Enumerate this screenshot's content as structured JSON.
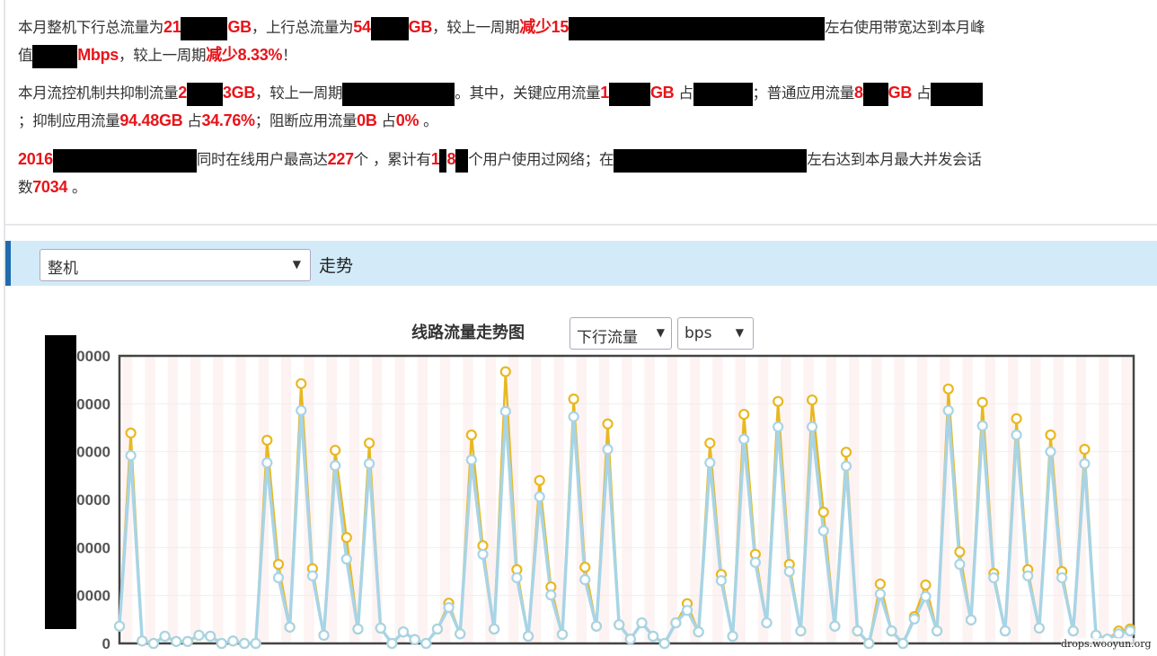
{
  "summary": {
    "p1": [
      {
        "t": "本月整机下行总流量为"
      },
      {
        "t": "21",
        "red": true
      },
      {
        "redact": 52
      },
      {
        "t": "GB",
        "red": true
      },
      {
        "t": "，上行总流量为"
      },
      {
        "t": "54",
        "red": true
      },
      {
        "redact": 42
      },
      {
        "t": "GB",
        "red": true
      },
      {
        "t": "，较上一周期"
      },
      {
        "t": "减少15",
        "red": true
      },
      {
        "redact": 285
      },
      {
        "t": "左右使用带宽达到本月峰"
      },
      {
        "br": true
      },
      {
        "t": "值"
      },
      {
        "redact": 50
      },
      {
        "t": "Mbps",
        "red": true
      },
      {
        "t": "，较上一周期"
      },
      {
        "t": "减少8.33%",
        "red": true
      },
      {
        "t": "！"
      }
    ],
    "p2": [
      {
        "t": "本月流控机制共抑制流量"
      },
      {
        "t": "2",
        "red": true
      },
      {
        "redact": 40
      },
      {
        "t": "3GB",
        "red": true
      },
      {
        "t": "，较上一周期"
      },
      {
        "redact": 125
      },
      {
        "t": "。其中，关键应用流量"
      },
      {
        "t": "1",
        "red": true
      },
      {
        "redact": 46
      },
      {
        "t": "GB",
        "red": true
      },
      {
        "t": " 占"
      },
      {
        "redact": 66
      },
      {
        "t": "；普通应用流量"
      },
      {
        "t": "8",
        "red": true
      },
      {
        "redact": 28
      },
      {
        "t": "GB",
        "red": true
      },
      {
        "t": " 占"
      },
      {
        "redact": 58
      },
      {
        "br": true
      },
      {
        "t": "；抑制应用流量"
      },
      {
        "t": "94.48GB",
        "red": true
      },
      {
        "t": " 占"
      },
      {
        "t": "34.76%",
        "red": true
      },
      {
        "t": "；阻断应用流量"
      },
      {
        "t": "0B",
        "red": true
      },
      {
        "t": " 占"
      },
      {
        "t": "0%",
        "red": true
      },
      {
        "t": " 。"
      }
    ],
    "p3": [
      {
        "t": "2016",
        "red": true
      },
      {
        "redact": 160
      },
      {
        "t": "同时在线用户最高达"
      },
      {
        "t": "227",
        "red": true
      },
      {
        "t": "个 ，累计有"
      },
      {
        "t": "1",
        "red": true
      },
      {
        "redact": 8
      },
      {
        "t": "8",
        "red": true
      },
      {
        "redact": 14
      },
      {
        "t": "个用户使用过网络；在"
      },
      {
        "redact": 215
      },
      {
        "t": "左右达到本月最大并发会话"
      },
      {
        "br": true
      },
      {
        "t": "数"
      },
      {
        "t": "7034",
        "red": true
      },
      {
        "t": " 。"
      }
    ]
  },
  "section": {
    "scope_select": "整机",
    "label": "走势"
  },
  "chart_header": {
    "title": "线路流量走势图",
    "direction_select": "下行流量",
    "unit_select": "bps"
  },
  "watermark": "drops.wooyun.org",
  "colors": {
    "highlight": "#e8141a",
    "band": "#d3ebf8",
    "series_a": "#e8b820",
    "series_b": "#a8d4e6"
  },
  "chart_data": {
    "type": "line",
    "ylim": [
      0,
      6
    ],
    "y_tick_labels": [
      "0",
      "0000",
      "0000",
      "0000",
      "0000",
      "0000",
      "0000"
    ],
    "y_ticks": [
      0,
      1,
      2,
      3,
      4,
      5,
      6
    ],
    "grid": true,
    "series": [
      {
        "values": [
          0.36,
          4.39,
          0.05,
          0,
          0.15,
          0.04,
          0.04,
          0.17,
          0.15,
          0,
          0.05,
          0,
          0,
          4.24,
          1.65,
          0.34,
          5.42,
          1.56,
          0.17,
          4.03,
          2.21,
          0.3,
          4.18,
          0.32,
          0,
          0.24,
          0.08,
          0,
          0.3,
          0.84,
          0.2,
          4.35,
          2.04,
          0.3,
          5.67,
          1.54,
          0.15,
          3.4,
          1.18,
          0.19,
          5.1,
          1.59,
          0.36,
          4.58,
          0.39,
          0.09,
          0.43,
          0.15,
          0,
          0.43,
          0.83,
          0.24,
          4.18,
          1.44,
          0.15,
          4.78,
          1.86,
          0.43,
          5.05,
          1.65,
          0.26,
          5.08,
          2.74,
          0.36,
          3.99,
          0.26,
          0,
          1.24,
          0.26,
          0,
          0.56,
          1.22,
          0.26,
          5.31,
          1.91,
          0.49,
          5.03,
          1.46,
          0.26,
          4.69,
          1.54,
          0.32,
          4.35,
          1.5,
          0.26,
          4.05,
          0.17,
          0.09,
          0.26,
          0.3
        ]
      },
      {
        "values": [
          0.36,
          3.92,
          0.05,
          0,
          0.15,
          0.04,
          0.04,
          0.17,
          0.15,
          0,
          0.05,
          0,
          0,
          3.77,
          1.37,
          0.34,
          4.86,
          1.41,
          0.17,
          3.71,
          1.76,
          0.3,
          3.75,
          0.32,
          0,
          0.24,
          0.08,
          0,
          0.3,
          0.75,
          0.2,
          3.83,
          1.86,
          0.3,
          4.84,
          1.37,
          0.15,
          3.06,
          1.01,
          0.19,
          4.73,
          1.33,
          0.36,
          4.05,
          0.39,
          0.09,
          0.43,
          0.15,
          0,
          0.43,
          0.69,
          0.24,
          3.77,
          1.31,
          0.15,
          4.26,
          1.69,
          0.43,
          4.52,
          1.5,
          0.26,
          4.52,
          2.35,
          0.36,
          3.7,
          0.26,
          0,
          1.03,
          0.26,
          0,
          0.51,
          0.98,
          0.26,
          4.86,
          1.65,
          0.49,
          4.54,
          1.37,
          0.26,
          4.35,
          1.41,
          0.32,
          4.0,
          1.37,
          0.26,
          3.75,
          0.17,
          0.09,
          0.2,
          0.26
        ]
      }
    ]
  }
}
